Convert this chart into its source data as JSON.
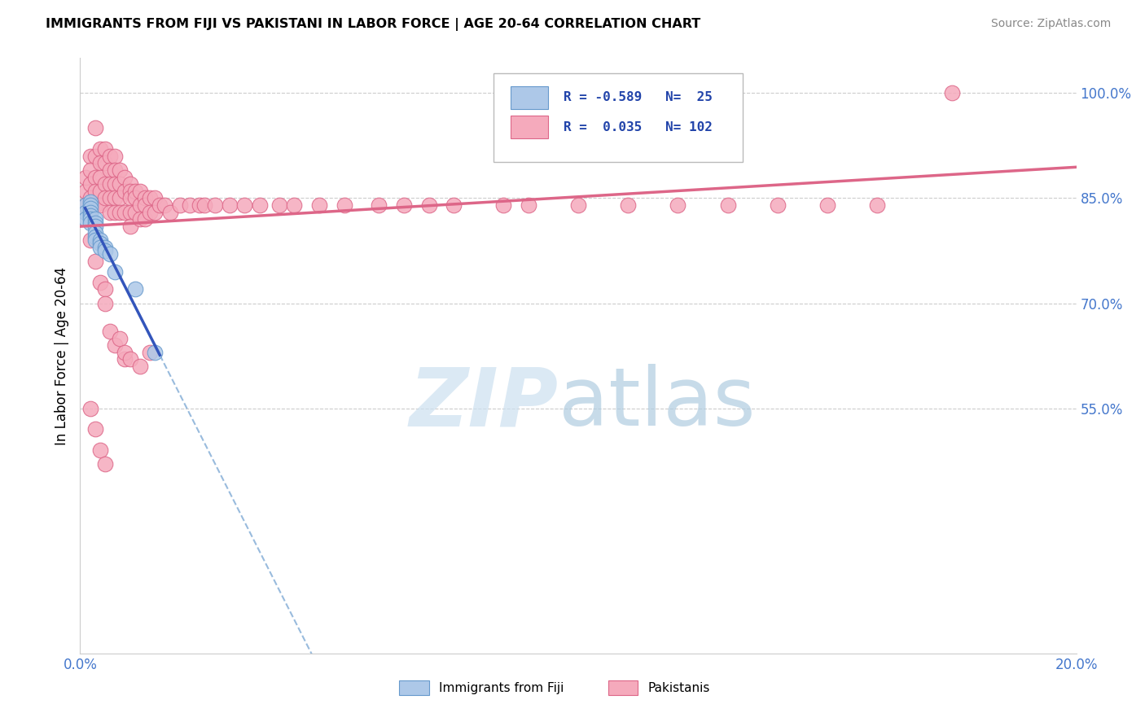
{
  "title": "IMMIGRANTS FROM FIJI VS PAKISTANI IN LABOR FORCE | AGE 20-64 CORRELATION CHART",
  "source": "Source: ZipAtlas.com",
  "ylabel": "In Labor Force | Age 20-64",
  "xlim": [
    0.0,
    0.2
  ],
  "ylim": [
    0.2,
    1.05
  ],
  "yticks": [
    0.55,
    0.7,
    0.85,
    1.0
  ],
  "ytick_labels": [
    "55.0%",
    "70.0%",
    "85.0%",
    "100.0%"
  ],
  "xticks": [
    0.0,
    0.05,
    0.1,
    0.15,
    0.2
  ],
  "xtick_labels": [
    "0.0%",
    "",
    "",
    "",
    "20.0%"
  ],
  "fiji_color": "#adc8e8",
  "fiji_edge_color": "#6699cc",
  "pakistan_color": "#f5aabc",
  "pakistan_edge_color": "#dd6688",
  "fiji_R": -0.589,
  "fiji_N": 25,
  "pakistan_R": 0.035,
  "pakistan_N": 102,
  "fiji_line_color": "#3355bb",
  "pakistan_line_color": "#dd6688",
  "dashed_line_color": "#99bbdd",
  "fiji_scatter_x": [
    0.001,
    0.001,
    0.001,
    0.002,
    0.002,
    0.002,
    0.002,
    0.002,
    0.002,
    0.002,
    0.003,
    0.003,
    0.003,
    0.003,
    0.003,
    0.003,
    0.004,
    0.004,
    0.004,
    0.005,
    0.005,
    0.006,
    0.007,
    0.011,
    0.015
  ],
  "fiji_scatter_y": [
    0.84,
    0.83,
    0.82,
    0.845,
    0.84,
    0.835,
    0.83,
    0.825,
    0.82,
    0.815,
    0.82,
    0.815,
    0.81,
    0.8,
    0.795,
    0.79,
    0.79,
    0.785,
    0.78,
    0.78,
    0.775,
    0.77,
    0.745,
    0.72,
    0.63
  ],
  "pakistan_scatter_x": [
    0.001,
    0.001,
    0.001,
    0.002,
    0.002,
    0.002,
    0.002,
    0.003,
    0.003,
    0.003,
    0.003,
    0.003,
    0.004,
    0.004,
    0.004,
    0.004,
    0.004,
    0.005,
    0.005,
    0.005,
    0.005,
    0.006,
    0.006,
    0.006,
    0.006,
    0.006,
    0.007,
    0.007,
    0.007,
    0.007,
    0.007,
    0.008,
    0.008,
    0.008,
    0.008,
    0.009,
    0.009,
    0.009,
    0.01,
    0.01,
    0.01,
    0.01,
    0.01,
    0.011,
    0.011,
    0.011,
    0.012,
    0.012,
    0.012,
    0.013,
    0.013,
    0.013,
    0.014,
    0.014,
    0.015,
    0.015,
    0.016,
    0.017,
    0.018,
    0.02,
    0.022,
    0.024,
    0.025,
    0.027,
    0.03,
    0.033,
    0.036,
    0.04,
    0.043,
    0.048,
    0.053,
    0.06,
    0.065,
    0.07,
    0.075,
    0.085,
    0.09,
    0.1,
    0.11,
    0.12,
    0.13,
    0.14,
    0.15,
    0.16,
    0.175,
    0.002,
    0.003,
    0.004,
    0.005,
    0.005,
    0.006,
    0.007,
    0.008,
    0.009,
    0.009,
    0.01,
    0.012,
    0.014,
    0.002,
    0.003,
    0.004,
    0.005
  ],
  "pakistan_scatter_y": [
    0.84,
    0.86,
    0.88,
    0.91,
    0.89,
    0.87,
    0.85,
    0.95,
    0.91,
    0.88,
    0.86,
    0.84,
    0.92,
    0.9,
    0.88,
    0.86,
    0.84,
    0.92,
    0.9,
    0.87,
    0.85,
    0.91,
    0.89,
    0.87,
    0.85,
    0.83,
    0.91,
    0.89,
    0.87,
    0.85,
    0.83,
    0.89,
    0.87,
    0.85,
    0.83,
    0.88,
    0.86,
    0.83,
    0.87,
    0.86,
    0.85,
    0.83,
    0.81,
    0.86,
    0.85,
    0.83,
    0.86,
    0.84,
    0.82,
    0.85,
    0.84,
    0.82,
    0.85,
    0.83,
    0.85,
    0.83,
    0.84,
    0.84,
    0.83,
    0.84,
    0.84,
    0.84,
    0.84,
    0.84,
    0.84,
    0.84,
    0.84,
    0.84,
    0.84,
    0.84,
    0.84,
    0.84,
    0.84,
    0.84,
    0.84,
    0.84,
    0.84,
    0.84,
    0.84,
    0.84,
    0.84,
    0.84,
    0.84,
    0.84,
    1.0,
    0.79,
    0.76,
    0.73,
    0.72,
    0.7,
    0.66,
    0.64,
    0.65,
    0.62,
    0.63,
    0.62,
    0.61,
    0.63,
    0.55,
    0.52,
    0.49,
    0.47
  ]
}
